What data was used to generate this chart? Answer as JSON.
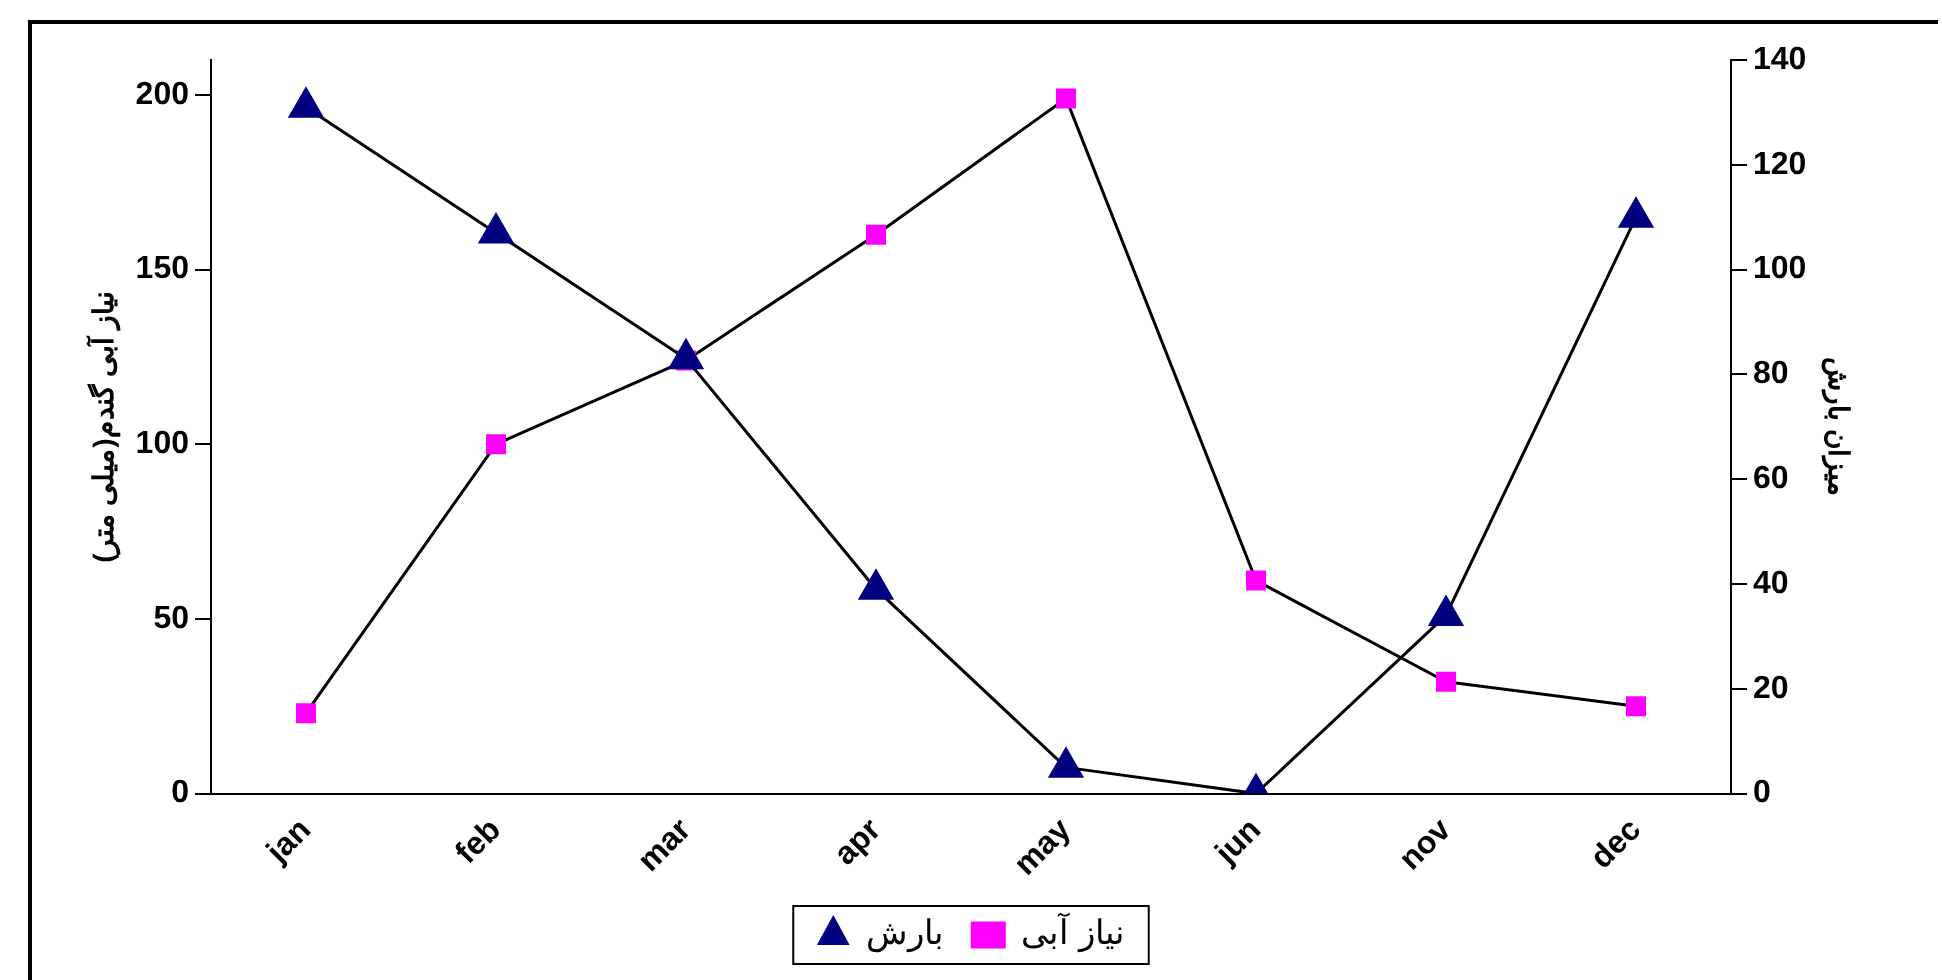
{
  "chart_data": {
    "type": "line",
    "categories": [
      "jan",
      "feb",
      "mar",
      "apr",
      "may",
      "jun",
      "nov",
      "dec"
    ],
    "ylabel": "نیاز آبی گندم(میلی متر)",
    "y2label": "میزان بارش",
    "series": [
      {
        "name": "نیاز آبی",
        "color": "#ff00ff",
        "marker": "square",
        "values": [
          23,
          100,
          124,
          160,
          199,
          61,
          32,
          25
        ]
      },
      {
        "name": "بارش",
        "color": "#000080",
        "marker": "triangle",
        "axis": "y2",
        "values": [
          131,
          107,
          83,
          39,
          5,
          0,
          34,
          110
        ]
      }
    ],
    "ylim": [
      0,
      210
    ],
    "yticks": [
      0,
      50,
      100,
      150,
      200
    ],
    "y2lim": [
      0,
      140
    ],
    "y2ticks": [
      0,
      20,
      40,
      60,
      80,
      100,
      120,
      140
    ],
    "grid": false,
    "legend": "bottom",
    "line_style": "solid"
  }
}
